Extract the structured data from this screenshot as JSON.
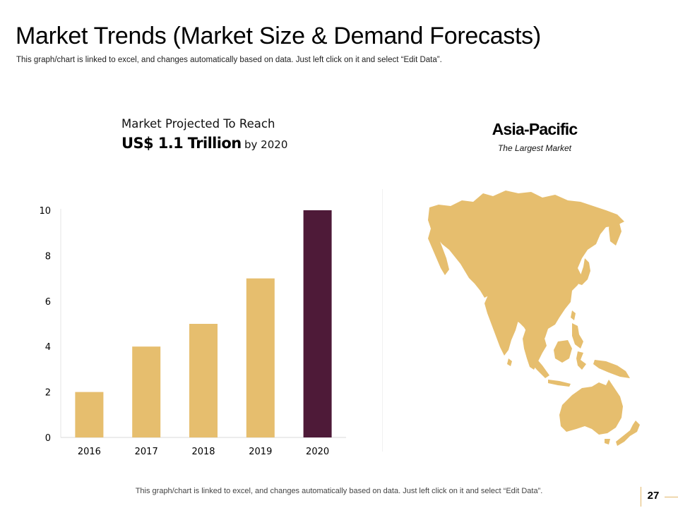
{
  "header": {
    "title": "Market Trends (Market Size & Demand Forecasts)",
    "subtitle": "This graph/chart is linked to excel, and changes automatically based on data. Just left click on it and select “Edit Data”."
  },
  "headline": {
    "line1": "Market Projected To Reach",
    "amount": "US$ 1.1 Trillion",
    "suffix": "by 2020"
  },
  "region": {
    "name": "Asia-Pacific",
    "subtitle": "The Largest Market"
  },
  "footer": {
    "note": "This graph/chart is linked to excel, and changes automatically based on data. Just left click on it and select “Edit Data”.",
    "page_number": "27"
  },
  "colors": {
    "bar": "#E6BE6E",
    "highlight": "#4E1A38",
    "map": "#E6BE6E",
    "accent_line": "#E2B86A"
  },
  "chart_data": {
    "type": "bar",
    "title": "",
    "xlabel": "",
    "ylabel": "",
    "categories": [
      "2016",
      "2017",
      "2018",
      "2019",
      "2020"
    ],
    "values": [
      2,
      4,
      5,
      7,
      10
    ],
    "highlight_index": 4,
    "ylim": [
      0,
      10
    ],
    "yticks": [
      0,
      2,
      4,
      6,
      8,
      10
    ],
    "grid": false
  }
}
